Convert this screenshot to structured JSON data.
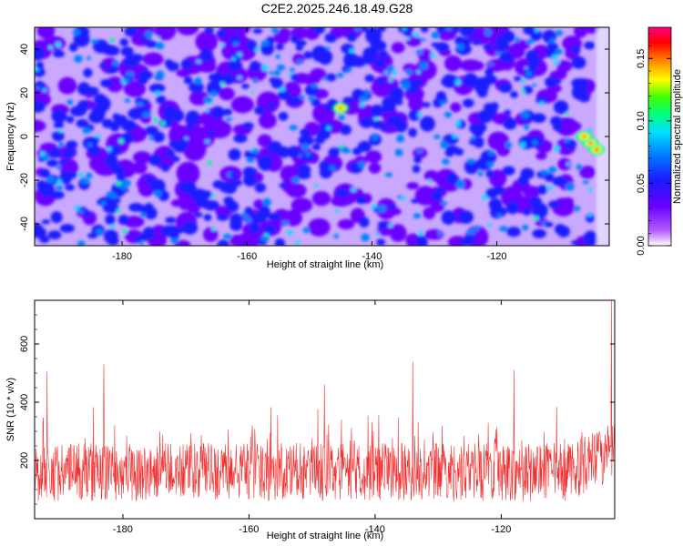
{
  "title": "C2E2.2025.246.18.49.G28",
  "chart_data": [
    {
      "type": "heatmap",
      "panel": "spectrogram",
      "xlabel": "Height of straight line (km)",
      "ylabel": "Frequency (Hz)",
      "xlim": [
        -194,
        -102
      ],
      "ylim": [
        -50,
        50
      ],
      "xticks": [
        -180,
        -160,
        -140,
        -120
      ],
      "yticks": [
        -40,
        -20,
        0,
        20,
        40
      ],
      "colorbar": {
        "label": "Normalized spectral amplitude",
        "range": [
          0,
          0.175
        ],
        "ticks": [
          "0.00",
          "0.05",
          "0.10",
          "0.15"
        ],
        "colors": [
          "#ffffff",
          "#b45cff",
          "#6a00ff",
          "#1a1aff",
          "#0080ff",
          "#00e0ff",
          "#00ff80",
          "#40ff00",
          "#ffff00",
          "#ff8000",
          "#ff0000",
          "#ff0080"
        ]
      },
      "hotspots": [
        {
          "x": -105,
          "y": -3,
          "value": 0.17
        },
        {
          "x": -104,
          "y": -6,
          "value": 0.16
        },
        {
          "x": -106,
          "y": 0,
          "value": 0.14
        },
        {
          "x": -145,
          "y": 13,
          "value": 0.15
        }
      ]
    },
    {
      "type": "line",
      "panel": "snr",
      "series": [
        {
          "name": "SNR",
          "color": "#f03030"
        }
      ],
      "xlabel": "Height of straight line (km)",
      "ylabel": "SNR (10 * v/v)",
      "xlim": [
        -194,
        -102
      ],
      "ylim": [
        0,
        750
      ],
      "xticks": [
        -180,
        -160,
        -140,
        -120
      ],
      "yticks": [
        200,
        400,
        600
      ],
      "baseline_mean": 160,
      "spikes": [
        {
          "x": -102.5,
          "y": 750
        },
        {
          "x": -134,
          "y": 540
        },
        {
          "x": -183,
          "y": 530
        },
        {
          "x": -118,
          "y": 510
        },
        {
          "x": -192,
          "y": 505
        },
        {
          "x": -148,
          "y": 460
        }
      ]
    }
  ]
}
